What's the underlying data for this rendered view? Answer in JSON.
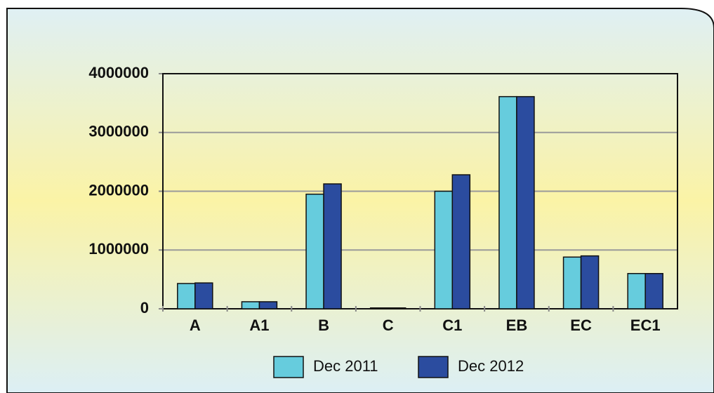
{
  "chart_data": {
    "type": "bar",
    "categories": [
      "A",
      "A1",
      "B",
      "C",
      "C1",
      "EB",
      "EC",
      "EC1"
    ],
    "series": [
      {
        "name": "Dec 2011",
        "color": "#66ccdd",
        "values": [
          430000,
          120000,
          1950000,
          15000,
          2000000,
          3610000,
          880000,
          600000
        ]
      },
      {
        "name": "Dec 2012",
        "color": "#2b4c9f",
        "values": [
          440000,
          120000,
          2125000,
          15000,
          2280000,
          3610000,
          900000,
          600000
        ]
      }
    ],
    "ylim": [
      0,
      4000000
    ],
    "yticks": [
      0,
      1000000,
      2000000,
      3000000,
      4000000
    ],
    "grid": true,
    "legend": "bottom"
  }
}
